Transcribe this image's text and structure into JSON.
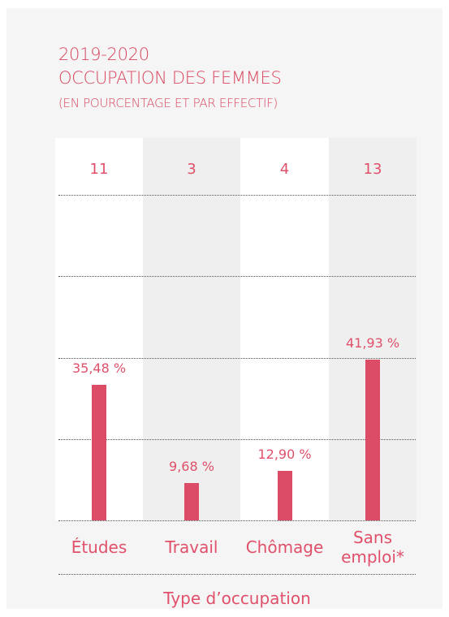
{
  "chart_data": {
    "type": "bar",
    "title": "2019-2020",
    "subtitle": "OCCUPATION DES FEMMES",
    "note": "(EN POURCENTAGE ET PAR EFFECTIF)",
    "categories": [
      "Études",
      "Travail",
      "Chômage",
      "Sans emploi*"
    ],
    "counts": [
      11,
      3,
      4,
      13
    ],
    "values": [
      35.48,
      9.68,
      12.9,
      41.93
    ],
    "value_labels": [
      "35,48 %",
      "9,68 %",
      "12,90 %",
      "41,93 %"
    ],
    "color": "#dd4c66",
    "ylim": [
      0,
      85
    ],
    "x_label": "Type d’occupation"
  }
}
